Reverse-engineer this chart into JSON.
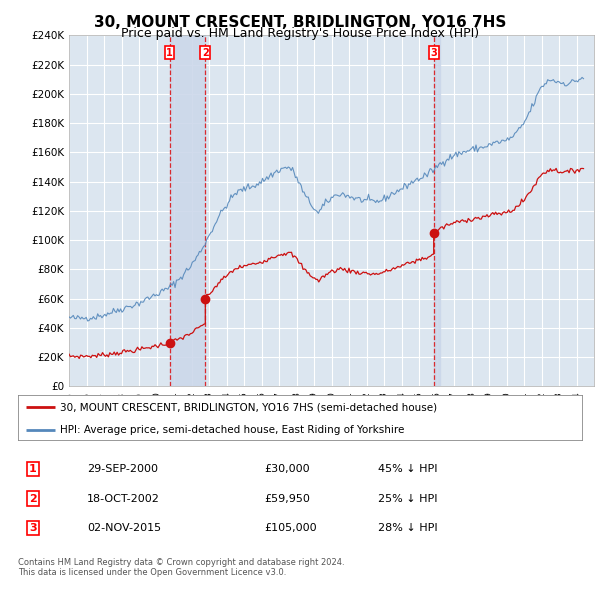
{
  "title": "30, MOUNT CRESCENT, BRIDLINGTON, YO16 7HS",
  "subtitle": "Price paid vs. HM Land Registry's House Price Index (HPI)",
  "title_fontsize": 11,
  "subtitle_fontsize": 9,
  "background_color": "#ffffff",
  "plot_bg_color": "#dce6f0",
  "grid_color": "#ffffff",
  "hpi_color": "#5588bb",
  "price_color": "#cc1111",
  "dot_color": "#cc1111",
  "ylim": [
    0,
    240000
  ],
  "yticks": [
    0,
    20000,
    40000,
    60000,
    80000,
    100000,
    120000,
    140000,
    160000,
    180000,
    200000,
    220000,
    240000
  ],
  "sale_years": [
    2000.75,
    2002.79,
    2015.84
  ],
  "sale_prices": [
    30000,
    59950,
    105000
  ],
  "sale_labels": [
    "1",
    "2",
    "3"
  ],
  "legend_entries": [
    "30, MOUNT CRESCENT, BRIDLINGTON, YO16 7HS (semi-detached house)",
    "HPI: Average price, semi-detached house, East Riding of Yorkshire"
  ],
  "table_rows": [
    {
      "num": "1",
      "date": "29-SEP-2000",
      "price": "£30,000",
      "hpi": "45% ↓ HPI"
    },
    {
      "num": "2",
      "date": "18-OCT-2002",
      "price": "£59,950",
      "hpi": "25% ↓ HPI"
    },
    {
      "num": "3",
      "date": "02-NOV-2015",
      "price": "£105,000",
      "hpi": "28% ↓ HPI"
    }
  ],
  "footer": "Contains HM Land Registry data © Crown copyright and database right 2024.\nThis data is licensed under the Open Government Licence v3.0.",
  "xstart": 1995.0,
  "xend": 2024.5,
  "span_color": "#ccd8ea",
  "vline_color": "#dd0000"
}
